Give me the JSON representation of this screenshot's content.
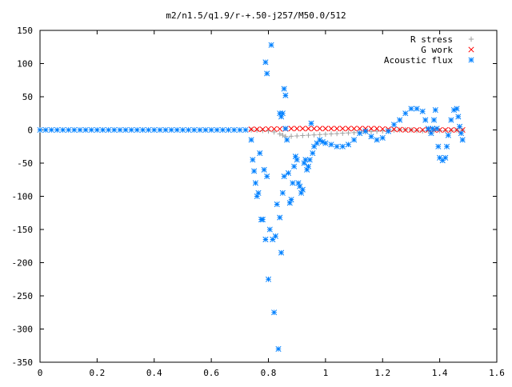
{
  "chart_data": {
    "type": "scatter",
    "title": "m2/n1.5/q1.9/r-+.50-j257/M50.0/512",
    "xlabel": "",
    "ylabel": "",
    "xlim": [
      0,
      1.6
    ],
    "ylim": [
      -350,
      150
    ],
    "x_ticks": [
      0,
      0.2,
      0.4,
      0.6,
      0.8,
      1,
      1.2,
      1.4,
      1.6
    ],
    "x_tick_labels": [
      "0",
      "0.2",
      "0.4",
      "0.6",
      "0.8",
      "1",
      "1.2",
      "1.4",
      "1.6"
    ],
    "y_ticks": [
      150,
      100,
      50,
      0,
      -50,
      -100,
      -150,
      -200,
      -250,
      -300,
      -350
    ],
    "y_tick_labels": [
      "150",
      "100",
      "50",
      "0",
      "-50",
      "-100",
      "-150",
      "-200",
      "-250",
      "-300",
      "-350"
    ],
    "grid": false,
    "legend_position": "top-right",
    "series": [
      {
        "name": "R stress",
        "marker": "plus",
        "color": "#a0a0a0",
        "points": [
          [
            0.74,
            0
          ],
          [
            0.76,
            -0.5
          ],
          [
            0.78,
            -1
          ],
          [
            0.8,
            -1.5
          ],
          [
            0.82,
            -3
          ],
          [
            0.84,
            -6
          ],
          [
            0.85,
            -8
          ],
          [
            0.86,
            -10
          ],
          [
            0.88,
            -9.5
          ],
          [
            0.9,
            -9
          ],
          [
            0.92,
            -8.5
          ],
          [
            0.94,
            -8
          ],
          [
            0.96,
            -7.5
          ],
          [
            0.98,
            -7
          ],
          [
            1.0,
            -6.5
          ],
          [
            1.02,
            -6
          ],
          [
            1.04,
            -5.5
          ],
          [
            1.06,
            -5
          ],
          [
            1.08,
            -4.5
          ],
          [
            1.1,
            -4
          ],
          [
            1.12,
            -3.5
          ],
          [
            1.14,
            -3
          ],
          [
            1.16,
            -2.5
          ],
          [
            1.18,
            -2
          ],
          [
            1.2,
            -1.5
          ],
          [
            1.22,
            -1
          ],
          [
            1.24,
            -0.5
          ],
          [
            1.26,
            0
          ],
          [
            1.28,
            0.5
          ],
          [
            1.3,
            0
          ],
          [
            1.32,
            -1
          ],
          [
            1.34,
            -1.5
          ],
          [
            1.36,
            -1.5
          ],
          [
            1.38,
            -1
          ],
          [
            1.4,
            -1
          ],
          [
            1.42,
            -1
          ],
          [
            1.44,
            -1
          ],
          [
            1.46,
            -0.5
          ],
          [
            1.48,
            -0.5
          ]
        ]
      },
      {
        "name": "G work",
        "marker": "x",
        "color": "#ff0000",
        "points": [
          [
            0.74,
            1
          ],
          [
            0.76,
            1
          ],
          [
            0.78,
            1
          ],
          [
            0.8,
            1.5
          ],
          [
            0.82,
            1.5
          ],
          [
            0.84,
            1.5
          ],
          [
            0.86,
            1.5
          ],
          [
            0.88,
            2
          ],
          [
            0.9,
            2
          ],
          [
            0.92,
            2
          ],
          [
            0.94,
            2
          ],
          [
            0.96,
            2
          ],
          [
            0.98,
            2
          ],
          [
            1.0,
            2
          ],
          [
            1.02,
            2
          ],
          [
            1.04,
            2
          ],
          [
            1.06,
            2
          ],
          [
            1.08,
            2
          ],
          [
            1.1,
            2
          ],
          [
            1.12,
            2
          ],
          [
            1.14,
            2
          ],
          [
            1.16,
            2
          ],
          [
            1.18,
            2
          ],
          [
            1.2,
            1.5
          ],
          [
            1.22,
            1
          ],
          [
            1.24,
            1
          ],
          [
            1.26,
            0.5
          ],
          [
            1.28,
            0
          ],
          [
            1.3,
            0
          ],
          [
            1.32,
            0
          ],
          [
            1.34,
            0
          ],
          [
            1.36,
            0
          ],
          [
            1.38,
            0
          ],
          [
            1.4,
            0
          ],
          [
            1.42,
            0
          ],
          [
            1.44,
            0
          ],
          [
            1.46,
            0
          ],
          [
            1.48,
            0
          ]
        ]
      },
      {
        "name": "Acoustic flux",
        "marker": "star",
        "color": "#0080ff",
        "points": [
          [
            0.0,
            0
          ],
          [
            0.02,
            0
          ],
          [
            0.04,
            0
          ],
          [
            0.06,
            0
          ],
          [
            0.08,
            0
          ],
          [
            0.1,
            0
          ],
          [
            0.12,
            0
          ],
          [
            0.14,
            0
          ],
          [
            0.16,
            0
          ],
          [
            0.18,
            0
          ],
          [
            0.2,
            0
          ],
          [
            0.22,
            0
          ],
          [
            0.24,
            0
          ],
          [
            0.26,
            0
          ],
          [
            0.28,
            0
          ],
          [
            0.3,
            0
          ],
          [
            0.32,
            0
          ],
          [
            0.34,
            0
          ],
          [
            0.36,
            0
          ],
          [
            0.38,
            0
          ],
          [
            0.4,
            0
          ],
          [
            0.42,
            0
          ],
          [
            0.44,
            0
          ],
          [
            0.46,
            0
          ],
          [
            0.48,
            0
          ],
          [
            0.5,
            0
          ],
          [
            0.52,
            0
          ],
          [
            0.54,
            0
          ],
          [
            0.56,
            0
          ],
          [
            0.58,
            0
          ],
          [
            0.6,
            0
          ],
          [
            0.62,
            0
          ],
          [
            0.64,
            0
          ],
          [
            0.66,
            0
          ],
          [
            0.68,
            0
          ],
          [
            0.7,
            0
          ],
          [
            0.72,
            0
          ],
          [
            0.74,
            -15
          ],
          [
            0.745,
            -45
          ],
          [
            0.75,
            -62
          ],
          [
            0.755,
            -80
          ],
          [
            0.76,
            -100
          ],
          [
            0.765,
            -95
          ],
          [
            0.77,
            -35
          ],
          [
            0.775,
            -135
          ],
          [
            0.78,
            -135
          ],
          [
            0.785,
            -60
          ],
          [
            0.79,
            -165
          ],
          [
            0.795,
            -70
          ],
          [
            0.8,
            -225
          ],
          [
            0.805,
            -150
          ],
          [
            0.79,
            102
          ],
          [
            0.795,
            85
          ],
          [
            0.81,
            128
          ],
          [
            0.815,
            -165
          ],
          [
            0.82,
            -275
          ],
          [
            0.825,
            -160
          ],
          [
            0.83,
            -112
          ],
          [
            0.835,
            -330
          ],
          [
            0.84,
            -132
          ],
          [
            0.845,
            -185
          ],
          [
            0.85,
            -95
          ],
          [
            0.855,
            -70
          ],
          [
            0.84,
            25
          ],
          [
            0.845,
            20
          ],
          [
            0.85,
            25
          ],
          [
            0.855,
            62
          ],
          [
            0.86,
            52
          ],
          [
            0.86,
            2
          ],
          [
            0.865,
            -15
          ],
          [
            0.87,
            -65
          ],
          [
            0.875,
            -110
          ],
          [
            0.88,
            -105
          ],
          [
            0.885,
            -80
          ],
          [
            0.89,
            -55
          ],
          [
            0.895,
            -40
          ],
          [
            0.9,
            -45
          ],
          [
            0.905,
            -80
          ],
          [
            0.91,
            -85
          ],
          [
            0.915,
            -95
          ],
          [
            0.92,
            -90
          ],
          [
            0.925,
            -50
          ],
          [
            0.93,
            -45
          ],
          [
            0.935,
            -60
          ],
          [
            0.94,
            -55
          ],
          [
            0.945,
            -45
          ],
          [
            0.95,
            10
          ],
          [
            0.955,
            -35
          ],
          [
            0.96,
            -25
          ],
          [
            0.97,
            -20
          ],
          [
            0.98,
            -15
          ],
          [
            0.99,
            -18
          ],
          [
            1.0,
            -20
          ],
          [
            1.02,
            -22
          ],
          [
            1.04,
            -25
          ],
          [
            1.06,
            -25
          ],
          [
            1.08,
            -22
          ],
          [
            1.1,
            -15
          ],
          [
            1.12,
            -5
          ],
          [
            1.14,
            -2
          ],
          [
            1.16,
            -10
          ],
          [
            1.18,
            -15
          ],
          [
            1.2,
            -12
          ],
          [
            1.22,
            -2
          ],
          [
            1.24,
            8
          ],
          [
            1.26,
            15
          ],
          [
            1.28,
            25
          ],
          [
            1.3,
            32
          ],
          [
            1.32,
            32
          ],
          [
            1.34,
            28
          ],
          [
            1.35,
            15
          ],
          [
            1.36,
            2
          ],
          [
            1.37,
            -5
          ],
          [
            1.375,
            2
          ],
          [
            1.38,
            15
          ],
          [
            1.385,
            30
          ],
          [
            1.39,
            2
          ],
          [
            1.395,
            -25
          ],
          [
            1.4,
            -42
          ],
          [
            1.41,
            -46
          ],
          [
            1.42,
            -42
          ],
          [
            1.425,
            -25
          ],
          [
            1.43,
            -8
          ],
          [
            1.44,
            15
          ],
          [
            1.45,
            30
          ],
          [
            1.46,
            32
          ],
          [
            1.465,
            20
          ],
          [
            1.47,
            5
          ],
          [
            1.475,
            -5
          ],
          [
            1.48,
            -15
          ]
        ]
      }
    ]
  }
}
